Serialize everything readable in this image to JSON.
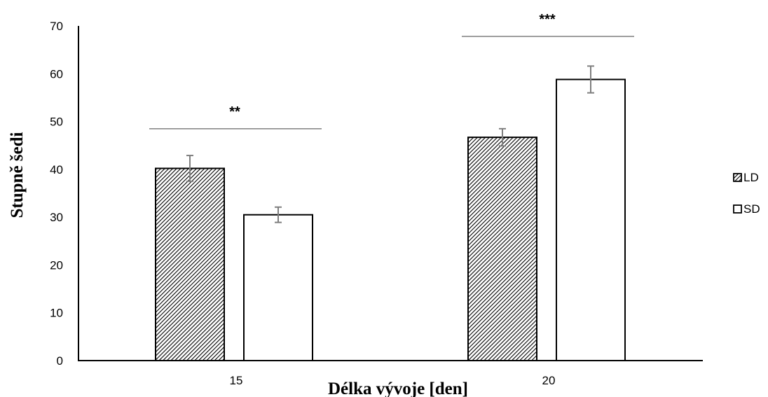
{
  "chart_data": {
    "type": "bar",
    "title": "",
    "xlabel": "Délka vývoje [den]",
    "ylabel": "Stupně šedi",
    "categories": [
      "15",
      "20"
    ],
    "ylim": [
      0,
      70
    ],
    "yticks": [
      0,
      10,
      20,
      30,
      40,
      50,
      60,
      70
    ],
    "grid": false,
    "legend_position": "right",
    "series": [
      {
        "name": "LD",
        "pattern": "diagonal-hatch",
        "values": [
          40.2,
          46.7
        ],
        "errors": [
          2.7,
          1.8
        ]
      },
      {
        "name": "SD",
        "pattern": "white",
        "values": [
          30.5,
          58.8
        ],
        "errors": [
          1.6,
          2.8
        ]
      }
    ],
    "annotations": [
      {
        "category": "15",
        "label": "**",
        "y": 48.5
      },
      {
        "category": "20",
        "label": "***",
        "y": 67.8
      }
    ],
    "colors": {
      "bar_edge": "#000000",
      "hatch": "#000000",
      "sd_fill": "#ffffff",
      "error_bar": "#7f7f7f",
      "sig_line": "#7f7f7f"
    }
  }
}
